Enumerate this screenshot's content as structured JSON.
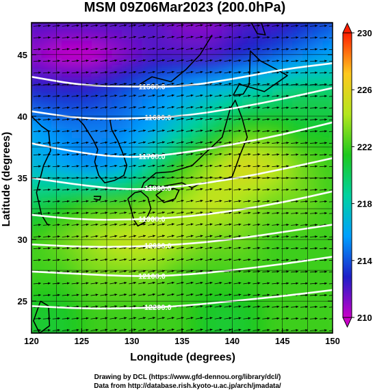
{
  "chart_data": {
    "type": "heatmap",
    "title": "MSM 09Z06Mar2023 (200.0hPa)",
    "xlabel": "Longitude (degrees)",
    "ylabel": "Latitude  (degrees)",
    "xlim": [
      120,
      150
    ],
    "ylim": [
      22.4,
      47.6
    ],
    "x_ticks": [
      "120",
      "125",
      "130",
      "135",
      "140",
      "145",
      "150"
    ],
    "y_ticks": [
      "25",
      "30",
      "35",
      "40",
      "45"
    ],
    "colorbar": {
      "min": 210,
      "max": 230,
      "ticks": [
        "210",
        "214",
        "218",
        "222",
        "226",
        "230"
      ],
      "colors": [
        "#c800c8",
        "#1e1ec8",
        "#00a0ff",
        "#00d2a0",
        "#1ec81e",
        "#b4e61e",
        "#ffc81e",
        "#ff1e00"
      ]
    },
    "temperature_field": [
      {
        "lat": 47.6,
        "lon_values": [
          212,
          212,
          212,
          212,
          212,
          211,
          211,
          212,
          212,
          213,
          214
        ]
      },
      {
        "lat": 45,
        "lon_values": [
          211,
          210,
          210,
          211,
          212,
          212,
          212,
          213,
          214,
          215,
          216
        ]
      },
      {
        "lat": 42,
        "lon_values": [
          213,
          213,
          213,
          214,
          215,
          216,
          217,
          218,
          219,
          220,
          220
        ]
      },
      {
        "lat": 39,
        "lon_values": [
          216,
          215,
          215,
          215,
          216,
          218,
          220,
          222,
          222,
          221,
          221
        ]
      },
      {
        "lat": 36,
        "lon_values": [
          217,
          216,
          215,
          216,
          219,
          222,
          224,
          226,
          225,
          223,
          222
        ]
      },
      {
        "lat": 33,
        "lon_values": [
          220,
          221,
          222,
          222,
          223,
          224,
          225,
          224,
          223,
          223,
          222
        ]
      },
      {
        "lat": 30,
        "lon_values": [
          222,
          223,
          224,
          225,
          225,
          224,
          223,
          223,
          222,
          222,
          222
        ]
      },
      {
        "lat": 27,
        "lon_values": [
          222,
          222,
          223,
          223,
          223,
          222,
          222,
          222,
          222,
          222,
          222
        ]
      },
      {
        "lat": 24,
        "lon_values": [
          221,
          221,
          222,
          222,
          222,
          222,
          221,
          221,
          222,
          222,
          222
        ]
      }
    ],
    "height_contours": [
      {
        "label": "11500.0",
        "lon": [
          120,
          125,
          130,
          135,
          140,
          145,
          150
        ],
        "lat": [
          43.2,
          42.5,
          42.4,
          42.4,
          43.0,
          43.8,
          44.3
        ]
      },
      {
        "label": "11600.0",
        "lon": [
          120,
          125,
          130,
          135,
          140,
          145,
          150
        ],
        "lat": [
          40.4,
          39.8,
          39.8,
          40.0,
          40.6,
          41.4,
          42.3
        ]
      },
      {
        "label": "11700.0",
        "lon": [
          120,
          125,
          130,
          135,
          140,
          145,
          150
        ],
        "lat": [
          37.8,
          37.0,
          36.6,
          37.0,
          37.7,
          38.5,
          39.5
        ]
      },
      {
        "label": "11800.0",
        "lon": [
          120,
          125,
          130,
          135,
          140,
          145,
          150
        ],
        "lat": [
          35.0,
          34.4,
          34.0,
          34.3,
          34.9,
          35.7,
          36.6
        ]
      },
      {
        "label": "11900.0",
        "lon": [
          120,
          125,
          130,
          135,
          140,
          145,
          150
        ],
        "lat": [
          32.0,
          31.6,
          31.6,
          31.8,
          32.3,
          33.0,
          33.9
        ]
      },
      {
        "label": "12000.0",
        "lon": [
          120,
          125,
          130,
          135,
          140,
          145,
          150
        ],
        "lat": [
          29.6,
          29.4,
          29.4,
          29.6,
          30.0,
          30.6,
          31.2
        ]
      },
      {
        "label": "12100.0",
        "lon": [
          120,
          125,
          130,
          135,
          140,
          145,
          150
        ],
        "lat": [
          27.4,
          27.2,
          27.0,
          27.1,
          27.5,
          28.0,
          28.6
        ]
      },
      {
        "label": "12200.0",
        "lon": [
          120,
          125,
          130,
          135,
          140,
          145,
          150
        ],
        "lat": [
          24.6,
          24.4,
          24.4,
          24.6,
          25.0,
          25.4,
          25.9
        ]
      }
    ],
    "coastlines": [
      {
        "name": "korea-peninsula",
        "lon": [
          124.4,
          125.2,
          126.2,
          126.6,
          126.3,
          126.7,
          127.3,
          128.3,
          129.2,
          129.5,
          129.1,
          128.6,
          128.0,
          127.8
        ],
        "lat": [
          40.0,
          39.3,
          38.0,
          37.3,
          36.3,
          35.2,
          34.6,
          34.8,
          35.2,
          36.0,
          37.0,
          38.0,
          38.9,
          39.8
        ]
      },
      {
        "name": "honshu",
        "lon": [
          130.9,
          131.8,
          133.0,
          135.0,
          136.0,
          137.0,
          138.5,
          140.0,
          140.8,
          141.5,
          141.0,
          140.3,
          139.8,
          139.0,
          137.3,
          136.0,
          134.0,
          132.4,
          131.2,
          130.9
        ],
        "lat": [
          34.0,
          34.4,
          34.3,
          34.6,
          34.2,
          34.6,
          34.7,
          35.1,
          36.9,
          38.3,
          39.8,
          41.3,
          40.6,
          38.3,
          37.0,
          36.0,
          35.5,
          35.4,
          34.6,
          34.0
        ]
      },
      {
        "name": "hokkaido",
        "lon": [
          140.1,
          141.1,
          141.7,
          141.8,
          142.8,
          144.2,
          145.5,
          143.2,
          142.0,
          140.7,
          140.1
        ],
        "lat": [
          41.7,
          41.8,
          42.6,
          45.3,
          44.5,
          43.9,
          43.3,
          42.0,
          42.3,
          42.6,
          41.7
        ]
      },
      {
        "name": "kyushu",
        "lon": [
          129.6,
          130.3,
          130.9,
          131.6,
          131.9,
          131.3,
          130.6,
          130.2,
          129.8,
          129.6
        ],
        "lat": [
          33.3,
          33.8,
          33.9,
          33.4,
          32.5,
          31.4,
          31.1,
          31.6,
          32.8,
          33.3
        ]
      },
      {
        "name": "shikoku",
        "lon": [
          132.4,
          133.6,
          134.7,
          134.3,
          133.2,
          132.4
        ],
        "lat": [
          33.6,
          34.3,
          34.0,
          33.3,
          33.0,
          33.6
        ]
      },
      {
        "name": "china-coast",
        "lon": [
          121.6,
          121.0,
          120.5,
          121.2,
          121.9,
          121.7,
          121.0,
          120.0
        ],
        "lat": [
          31.2,
          32.0,
          33.8,
          36.0,
          37.2,
          38.8,
          39.2,
          40.0
        ]
      },
      {
        "name": "taiwan",
        "lon": [
          120.9,
          121.7,
          121.8,
          120.8,
          120.2,
          120.9
        ],
        "lat": [
          25.0,
          24.6,
          23.0,
          22.4,
          23.4,
          25.0
        ]
      },
      {
        "name": "sakhalin",
        "lon": [
          141.9,
          142.5,
          143.3,
          142.9,
          142.2,
          141.9
        ],
        "lat": [
          47.6,
          46.7,
          46.6,
          47.6,
          47.6,
          47.6
        ]
      },
      {
        "name": "russia-coast",
        "lon": [
          130.8,
          132.0,
          133.9,
          135.4,
          136.8,
          138.0
        ],
        "lat": [
          42.6,
          43.2,
          42.8,
          43.8,
          45.0,
          46.6
        ]
      },
      {
        "name": "jeju",
        "lon": [
          126.2,
          126.9,
          126.8,
          126.2
        ],
        "lat": [
          33.5,
          33.5,
          33.2,
          33.3
        ]
      }
    ],
    "wind_vectors": "dense uniform field of black arrows pointing east-northeast"
  },
  "credits": {
    "line1": "Drawing by DCL (https://www.gfd-dennou.org/library/dcl/)",
    "line2": "Data from http://database.rish.kyoto-u.ac.jp/arch/jmadata/"
  }
}
